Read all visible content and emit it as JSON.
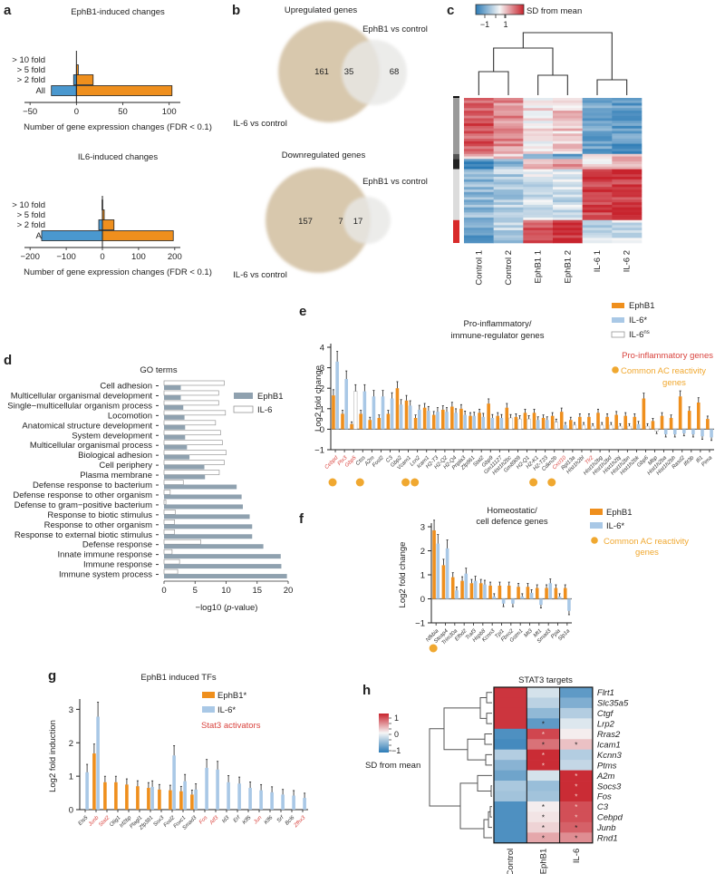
{
  "panel_labels": {
    "a": "a",
    "b": "b",
    "c": "c",
    "d": "d",
    "e": "e",
    "f": "f",
    "g": "g",
    "h": "h"
  },
  "colors": {
    "ephb1": "#ef8f1d",
    "il6": "#a9c8e6",
    "il6_dark": "#5b9bd0",
    "gray_bar": "#8fa1af",
    "red_text": "#d9443f",
    "common": "#f0a830",
    "venn_big": "#d8c8ad",
    "venn_small": "#e8e8e6"
  },
  "chart_data": [
    {
      "id": "a1",
      "type": "bar",
      "orientation": "horizontal",
      "title": "EphB1-induced changes",
      "xlabel": "Number of gene expression changes (FDR < 0.1)",
      "categories": [
        "> 10 fold",
        "> 5 fold",
        "> 2 fold",
        "All"
      ],
      "series": [
        {
          "name": "down",
          "values": [
            0,
            0,
            -3,
            -27
          ]
        },
        {
          "name": "up",
          "values": [
            0,
            2,
            18,
            103
          ]
        }
      ],
      "xlim": [
        -57,
        113
      ],
      "xticks": [
        -50,
        0,
        50,
        100
      ]
    },
    {
      "id": "a2",
      "type": "bar",
      "orientation": "horizontal",
      "title": "IL6-induced changes",
      "xlabel": "Number of gene expression changes (FDR < 0.1)",
      "categories": [
        "> 10 fold",
        "> 5 fold",
        "> 2 fold",
        "All"
      ],
      "series": [
        {
          "name": "down",
          "values": [
            -1,
            0,
            -10,
            -168
          ]
        },
        {
          "name": "up",
          "values": [
            1,
            5,
            32,
            196
          ]
        }
      ],
      "xlim": [
        -218,
        218
      ],
      "xticks": [
        -200,
        -100,
        0,
        100,
        200
      ]
    },
    {
      "id": "b1",
      "type": "venn",
      "title": "Upregulated genes",
      "sets": [
        {
          "name": "IL-6 vs control",
          "only": 161
        },
        {
          "name": "EphB1 vs control",
          "only": 68
        }
      ],
      "overlap": 35
    },
    {
      "id": "b2",
      "type": "venn",
      "title": "Downregulated genes",
      "sets": [
        {
          "name": "IL-6 vs control",
          "only": 157
        },
        {
          "name": "EphB1 vs control",
          "only": 17
        }
      ],
      "overlap": 7
    },
    {
      "id": "c",
      "type": "heatmap",
      "colorbar_title": "SD from mean",
      "colorbar_ticks": [
        "−1",
        "1"
      ],
      "columns": [
        "Control 1",
        "Control 2",
        "EphB1 1",
        "EphB1 2",
        "IL-6 1",
        "IL-6 2"
      ],
      "clusters": [
        {
          "name": "cluster1",
          "color": "#9a9a9a",
          "rows": 22,
          "values": [
            0.9,
            0.6,
            0.1,
            0.25,
            -0.8,
            -0.9
          ]
        },
        {
          "name": "cluster2",
          "color": "#555555",
          "rows": 2,
          "values": [
            0.4,
            0.3,
            -0.6,
            -0.8,
            0.2,
            0.3
          ]
        },
        {
          "name": "cluster3",
          "color": "#222222",
          "rows": 4,
          "values": [
            -1,
            -0.6,
            0.4,
            0.5,
            0.2,
            0.3
          ]
        },
        {
          "name": "cluster4",
          "color": "#dcdcdc",
          "rows": 20,
          "values": [
            -0.6,
            -0.4,
            -0.2,
            -0.25,
            1.0,
            1.1
          ]
        },
        {
          "name": "cluster5",
          "color": "#d82a2a",
          "rows": 9,
          "values": [
            -0.8,
            -0.4,
            0.9,
            1.2,
            -0.3,
            -0.2
          ]
        }
      ]
    },
    {
      "id": "d",
      "type": "bar",
      "orientation": "horizontal",
      "title": "GO terms",
      "xlabel": "−log10 (p-value)",
      "xlim": [
        0,
        20
      ],
      "xticks": [
        0,
        5,
        10,
        15,
        20
      ],
      "legend": [
        "EphB1",
        "IL-6"
      ],
      "categories": [
        "Cell adhesion",
        "Multicellular organismal development",
        "Single−multicellular organism process",
        "Locomotion",
        "Anatomical structure development",
        "System development",
        "Multicellular organismal process",
        "Biological adhesion",
        "Cell periphery",
        "Plasma membrane",
        "Defense response to bacterium",
        "Defense response to other organism",
        "Defense to gram−positive bacterium",
        "Response to biotic stimulus",
        "Response to other organism",
        "Response to external biotic stimulus",
        "Defense response",
        "Innate immune response",
        "Immune response",
        "Immune system process"
      ],
      "series": [
        {
          "name": "EphB1",
          "values": [
            2.7,
            2.7,
            3.1,
            3.3,
            3.4,
            3.4,
            3.7,
            4.1,
            6.5,
            6.6,
            11.7,
            12.5,
            12.7,
            13.8,
            14.2,
            14.2,
            16.0,
            18.8,
            18.9,
            19.8
          ]
        },
        {
          "name": "IL-6",
          "values": [
            9.7,
            8.8,
            8.8,
            9.9,
            8.3,
            9.1,
            9.4,
            10.0,
            9.7,
            8.9,
            3.1,
            1.0,
            0.3,
            1.8,
            1.7,
            1.7,
            5.9,
            1.3,
            2.5,
            2.2
          ]
        }
      ]
    },
    {
      "id": "e",
      "type": "bar",
      "title": "Pro-inflammatory/\nimmune-regulator genes",
      "ylabel": "Log2 fold change",
      "ylim": [
        -1,
        4
      ],
      "yticks": [
        -1,
        0,
        1,
        2,
        3,
        4
      ],
      "legend": [
        "EphB1",
        "IL-6*",
        "IL-6ns"
      ],
      "annotations": [
        "Pro-inflammatory genes",
        "Common AC reactivity genes"
      ],
      "categories": [
        "Cebpd",
        "Ptx3",
        "Gbp5",
        "Ctss",
        "A2m",
        "Fosl2",
        "C3",
        "Gbp2",
        "Vcam1",
        "Lcn2",
        "Icam1",
        "H2-T3",
        "H2-Q2",
        "H2-Q4",
        "Pnpla3",
        "Zfp961",
        "Stat2",
        "Gbp9",
        "Gm11127",
        "Hist1h2bc",
        "Gm8909",
        "H2-Q1",
        "H2-K1",
        "H2-T23",
        "Cdkn2b",
        "Cxcl10",
        "Rpl13a",
        "Hist1h2bl",
        "Tlr2",
        "Hist1h2bg",
        "Hist1h2bd",
        "Hist1h2bj",
        "Hist1h2bn",
        "Hist1h2bk",
        "Gbp6",
        "Mbp",
        "Hist1h2ba",
        "Hist1h2bh",
        "Rasd2",
        "Ifit3b",
        "Ifi1",
        "Pima"
      ],
      "red_labels": [
        "Cebpd",
        "Ptx3",
        "Gbp5",
        "Cxcl10",
        "Tlr2"
      ],
      "common_ac": [
        "Cebpd",
        "Ctss",
        "Vcam1",
        "Lcn2",
        "H2-K1",
        "Cdkn2b"
      ],
      "series": [
        {
          "name": "EphB1",
          "values": [
            1.65,
            0.75,
            0.25,
            0.75,
            0.45,
            0.55,
            0.75,
            2.0,
            1.4,
            0.55,
            1.05,
            0.7,
            0.95,
            1.1,
            1.0,
            0.65,
            0.8,
            1.25,
            0.65,
            1.05,
            0.6,
            0.8,
            0.8,
            0.55,
            0.65,
            0.85,
            0.45,
            0.6,
            0.6,
            0.8,
            0.6,
            0.7,
            0.65,
            0.6,
            1.5,
            0.4,
            0.65,
            0.55,
            1.6,
            0.9,
            1.3,
            0.5
          ]
        },
        {
          "name": "IL-6",
          "values": [
            3.3,
            2.45,
            1.85,
            1.85,
            1.6,
            1.6,
            1.5,
            1.2,
            1.15,
            0.95,
            0.9,
            0.85,
            0.85,
            0.8,
            0.7,
            0.65,
            0.6,
            0.55,
            0.55,
            0.55,
            0.5,
            0.5,
            0.45,
            0.45,
            0.35,
            0.2,
            0.2,
            0.2,
            0.15,
            0.2,
            0.2,
            0.15,
            0.15,
            0.25,
            0.15,
            -0.1,
            -0.25,
            -0.25,
            -0.2,
            -0.25,
            -0.35,
            -0.4
          ]
        },
        {
          "name": "IL-6_sig",
          "values": [
            1,
            1,
            0,
            1,
            1,
            1,
            1,
            1,
            1,
            1,
            1,
            1,
            1,
            1,
            1,
            1,
            1,
            1,
            1,
            0,
            0,
            0,
            1,
            1,
            0,
            1,
            0,
            0,
            0,
            0,
            0,
            0,
            0,
            1,
            0,
            0,
            1,
            1,
            1,
            1,
            1,
            1
          ]
        }
      ]
    },
    {
      "id": "f",
      "type": "bar",
      "title": "Homeostatic/\ncell defence genes",
      "ylabel": "Log2 fold change",
      "ylim": [
        -1,
        3
      ],
      "yticks": [
        -1,
        0,
        1,
        2,
        3
      ],
      "legend": [
        "EphB1",
        "IL-6*"
      ],
      "annotations": [
        "Common AC reactivity genes"
      ],
      "categories": [
        "Nfkbia",
        "Steap4",
        "Trim30a",
        "Efhd2",
        "Traf3",
        "Hspb8",
        "Kcnn3",
        "Tpi1",
        "Fbxo2",
        "Gstm1",
        "Mt3",
        "Mt1",
        "Smad3",
        "Ppia",
        "Slp1a"
      ],
      "common_ac": [
        "Nfkbia"
      ],
      "series": [
        {
          "name": "EphB1",
          "values": [
            2.85,
            1.4,
            0.9,
            0.75,
            0.65,
            0.65,
            0.55,
            0.55,
            0.55,
            0.5,
            0.5,
            0.45,
            0.45,
            0.45,
            0.45
          ]
        },
        {
          "name": "IL-6",
          "values": [
            2.3,
            2.1,
            0.35,
            1.05,
            0.75,
            0.6,
            0.1,
            -0.2,
            -0.2,
            0.1,
            0.25,
            -0.25,
            0.65,
            0.1,
            -0.5
          ]
        }
      ]
    },
    {
      "id": "g",
      "type": "bar",
      "title": "EphB1 induced TFs",
      "ylabel": "Log2 fold induction",
      "ylim": [
        0,
        3.2
      ],
      "yticks": [
        0,
        1,
        2,
        3
      ],
      "legend": [
        "EphB1*",
        "IL-6*"
      ],
      "annotations": [
        "Stat3 activators"
      ],
      "categories": [
        "Ets5",
        "Junb",
        "Stat2",
        "Olig1",
        "Irf2bp",
        "Plagl1",
        "Zfp381",
        "Sox3",
        "Fosl2",
        "Foxc1",
        "Smad3",
        "Fos",
        "Atf3",
        "Id3",
        "Erf",
        "Klf5",
        "Jun",
        "Klf6",
        "Srf",
        "Bcl6",
        "Zfhx3"
      ],
      "red_labels": [
        "Junb",
        "Stat2",
        "Fos",
        "Atf3",
        "Jun",
        "Zfhx3"
      ],
      "series": [
        {
          "name": "EphB1",
          "values": [
            0,
            1.68,
            0.82,
            0.82,
            0.75,
            0.7,
            0.65,
            0.6,
            0.58,
            0.55,
            0.45,
            0,
            0,
            0,
            0,
            0,
            0,
            0,
            0,
            0,
            0
          ]
        },
        {
          "name": "IL-6",
          "values": [
            1.12,
            2.78,
            0,
            0,
            0,
            0,
            0.68,
            0,
            1.62,
            0.85,
            0.6,
            1.25,
            1.2,
            0.82,
            0.78,
            0.65,
            0.58,
            0.52,
            0.45,
            0.42,
            0.35
          ]
        }
      ]
    },
    {
      "id": "h",
      "type": "heatmap",
      "title": "STAT3 targets",
      "colorbar_title": "SD from mean",
      "colorbar_ticks": [
        "1",
        "0",
        "−1"
      ],
      "columns": [
        "Control",
        "EphB1",
        "IL-6"
      ],
      "rows": [
        "Flrt1",
        "Slc35a5",
        "Ctgf",
        "Lrp2",
        "Rras2",
        "Icam1",
        "Kcnn3",
        "Ptms",
        "A2m",
        "Socs3",
        "Fos",
        "C3",
        "Cebpd",
        "Junb",
        "Rnd1"
      ],
      "values": [
        [
          1.1,
          -0.2,
          -0.9
        ],
        [
          1.1,
          -0.35,
          -0.7
        ],
        [
          1.1,
          -0.6,
          -0.4
        ],
        [
          1.1,
          -0.9,
          -0.15
        ],
        [
          -1.0,
          1.0,
          0.05
        ],
        [
          -1.05,
          0.75,
          0.3
        ],
        [
          -0.4,
          1.15,
          -0.4
        ],
        [
          -0.65,
          1.15,
          -0.3
        ],
        [
          -0.8,
          -0.2,
          1.15
        ],
        [
          -0.45,
          -0.55,
          1.15
        ],
        [
          -0.5,
          -0.5,
          1.15
        ],
        [
          -1.0,
          0.05,
          0.95
        ],
        [
          -1.0,
          0.1,
          0.95
        ],
        [
          -1.0,
          0.2,
          0.85
        ],
        [
          -1.0,
          0.45,
          0.6
        ]
      ],
      "stars": [
        [
          0,
          0,
          0
        ],
        [
          0,
          0,
          0
        ],
        [
          0,
          0,
          0
        ],
        [
          0,
          1,
          0
        ],
        [
          0,
          1,
          0
        ],
        [
          0,
          1,
          1
        ],
        [
          0,
          1,
          0
        ],
        [
          0,
          1,
          0
        ],
        [
          0,
          0,
          1
        ],
        [
          0,
          0,
          1
        ],
        [
          0,
          0,
          1
        ],
        [
          0,
          1,
          1
        ],
        [
          0,
          1,
          1
        ],
        [
          0,
          1,
          1
        ],
        [
          0,
          1,
          1
        ]
      ]
    }
  ]
}
